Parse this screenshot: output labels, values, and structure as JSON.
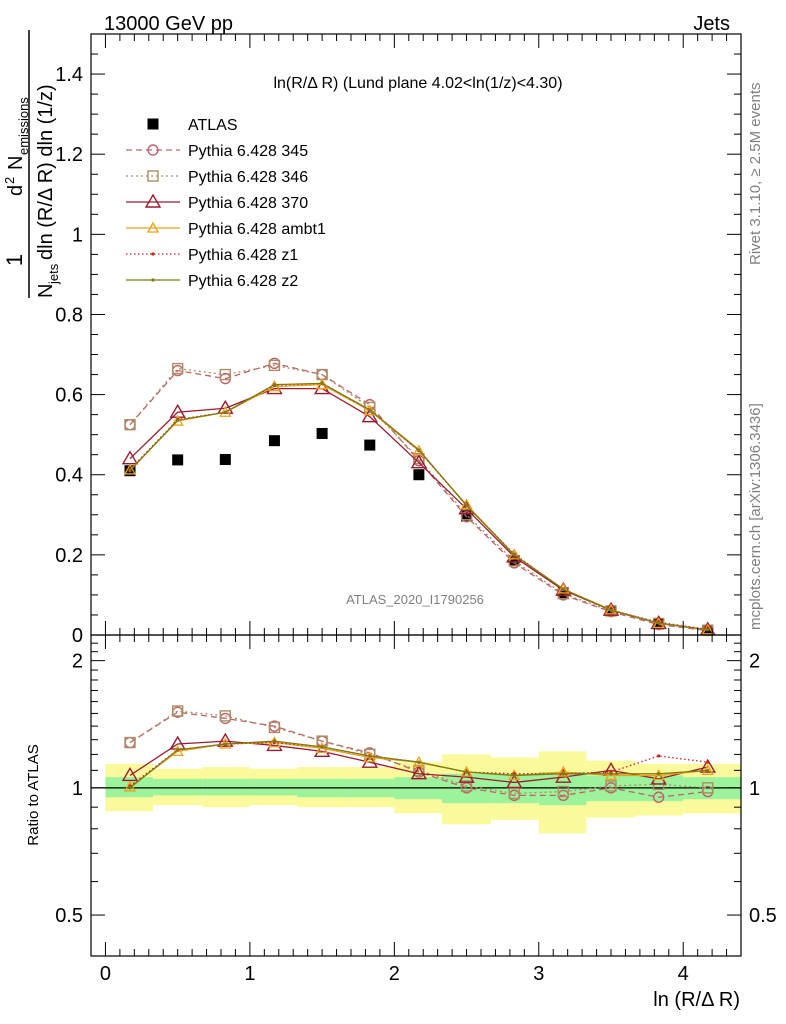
{
  "header": {
    "left": "13000 GeV pp",
    "right": "Jets"
  },
  "side": {
    "rivet": "Rivet 3.1.10, ≥ 2.5M events",
    "mcplots": "mcplots.cern.ch [arXiv:1306.3436]"
  },
  "watermark": "ATLAS_2020_I1790256",
  "colors": {
    "atlas": "#000000",
    "p345": "#c0606a",
    "p346": "#a88e62",
    "p370": "#9a1b2e",
    "ambt1": "#f0a018",
    "z1": "#d02020",
    "z2": "#7c7c14",
    "band_inner": "#9cf39c",
    "band_outer": "#fafa9c"
  },
  "chart_data": [
    {
      "type": "line",
      "title": "ln(R/Δ R) (Lund plane 4.02<ln(1/z)<4.30)",
      "ylabel": "1 / N_jets  d² N_emissions / dln (R/Δ R) dln (1/z)",
      "ylabel_parts": {
        "one": "1",
        "njets": "N",
        "jets": "jets",
        "dln1": "dln (R/Δ R) dln (1/z)",
        "d2": "d",
        "two": "2",
        "nem": "N",
        "emissions": "emissions"
      },
      "xlim": [
        -0.1,
        4.4
      ],
      "ylim": [
        0,
        1.5
      ],
      "yticks": [
        {
          "value": 0,
          "label": "0"
        },
        {
          "value": 0.2,
          "label": "0.2"
        },
        {
          "value": 0.4,
          "label": "0.4"
        },
        {
          "value": 0.6,
          "label": "0.6"
        },
        {
          "value": 0.8,
          "label": "0.8"
        },
        {
          "value": 1.0,
          "label": "1"
        },
        {
          "value": 1.2,
          "label": "1.2"
        },
        {
          "value": 1.4,
          "label": "1.4"
        }
      ],
      "x": [
        0.17,
        0.5,
        0.83,
        1.17,
        1.5,
        1.83,
        2.17,
        2.5,
        2.83,
        3.17,
        3.5,
        3.83,
        4.17
      ],
      "series": [
        {
          "key": "atlas",
          "name": "ATLAS",
          "marker": "square",
          "values": [
            0.41,
            0.437,
            0.438,
            0.485,
            0.503,
            0.474,
            0.4,
            0.297,
            0.186,
            0.105,
            0.06,
            0.028,
            0.012
          ]
        },
        {
          "key": "p345",
          "name": "Pythia 6.428 345",
          "marker": "circle",
          "dash": "6,4",
          "values": [
            0.525,
            0.66,
            0.64,
            0.678,
            0.65,
            0.575,
            0.435,
            0.295,
            0.18,
            0.1,
            0.058,
            0.026,
            0.011
          ]
        },
        {
          "key": "p346",
          "name": "Pythia 6.428 346",
          "marker": "square-open",
          "dash": "2,3",
          "values": [
            0.525,
            0.665,
            0.65,
            0.673,
            0.65,
            0.568,
            0.44,
            0.3,
            0.185,
            0.103,
            0.06,
            0.029,
            0.012
          ]
        },
        {
          "key": "p370",
          "name": "Pythia 6.428 370",
          "marker": "triangle",
          "dash": "",
          "values": [
            0.44,
            0.556,
            0.566,
            0.615,
            0.615,
            0.545,
            0.43,
            0.315,
            0.195,
            0.112,
            0.062,
            0.029,
            0.013
          ]
        },
        {
          "key": "ambt1",
          "name": "Pythia 6.428 ambt1",
          "marker": "triangle-small",
          "dash": "",
          "values": [
            0.412,
            0.534,
            0.556,
            0.62,
            0.625,
            0.56,
            0.46,
            0.325,
            0.2,
            0.115,
            0.063,
            0.029,
            0.013
          ]
        },
        {
          "key": "z1",
          "name": "Pythia 6.428 z1",
          "marker": "dot",
          "dash": "1.5,2.5",
          "values": [
            0.413,
            0.538,
            0.556,
            0.623,
            0.628,
            0.562,
            0.46,
            0.323,
            0.202,
            0.114,
            0.062,
            0.032,
            0.014
          ]
        },
        {
          "key": "z2",
          "name": "Pythia 6.428 z2",
          "marker": "dot",
          "dash": "",
          "values": [
            0.41,
            0.536,
            0.556,
            0.625,
            0.628,
            0.562,
            0.462,
            0.323,
            0.2,
            0.114,
            0.062,
            0.03,
            0.013
          ]
        }
      ]
    },
    {
      "type": "line",
      "ylabel": "Ratio to ATLAS",
      "xlabel": "ln (R/Δ R)",
      "xlim": [
        -0.1,
        4.4
      ],
      "ylim": [
        0.4,
        2.3
      ],
      "log_y": true,
      "xticks": [
        {
          "value": 0,
          "label": "0"
        },
        {
          "value": 1,
          "label": "1"
        },
        {
          "value": 2,
          "label": "2"
        },
        {
          "value": 3,
          "label": "3"
        },
        {
          "value": 4,
          "label": "4"
        }
      ],
      "yticks": [
        {
          "value": 0.5,
          "label": "0.5"
        },
        {
          "value": 1,
          "label": "1"
        },
        {
          "value": 2,
          "label": "2"
        }
      ],
      "bins": [
        [
          0,
          0.33
        ],
        [
          0.33,
          0.67
        ],
        [
          0.67,
          1
        ],
        [
          1,
          1.33
        ],
        [
          1.33,
          1.67
        ],
        [
          1.67,
          2
        ],
        [
          2,
          2.33
        ],
        [
          2.33,
          2.67
        ],
        [
          2.67,
          3
        ],
        [
          3,
          3.33
        ],
        [
          3.33,
          3.67
        ],
        [
          3.67,
          4
        ],
        [
          4,
          4.4
        ]
      ],
      "band_inner": [
        [
          0.95,
          1.06
        ],
        [
          0.96,
          1.05
        ],
        [
          0.96,
          1.05
        ],
        [
          0.96,
          1.05
        ],
        [
          0.95,
          1.05
        ],
        [
          0.95,
          1.05
        ],
        [
          0.94,
          1.06
        ],
        [
          0.92,
          1.08
        ],
        [
          0.92,
          1.08
        ],
        [
          0.91,
          1.09
        ],
        [
          0.93,
          1.07
        ],
        [
          0.93,
          1.07
        ],
        [
          0.94,
          1.06
        ]
      ],
      "band_outer": [
        [
          0.88,
          1.14
        ],
        [
          0.91,
          1.11
        ],
        [
          0.9,
          1.12
        ],
        [
          0.91,
          1.11
        ],
        [
          0.9,
          1.12
        ],
        [
          0.9,
          1.12
        ],
        [
          0.87,
          1.15
        ],
        [
          0.82,
          1.2
        ],
        [
          0.84,
          1.18
        ],
        [
          0.78,
          1.22
        ],
        [
          0.85,
          1.16
        ],
        [
          0.86,
          1.14
        ],
        [
          0.87,
          1.14
        ]
      ],
      "x": [
        0.17,
        0.5,
        0.83,
        1.17,
        1.5,
        1.83,
        2.17,
        2.5,
        2.83,
        3.17,
        3.5,
        3.83,
        4.17
      ],
      "series": [
        {
          "key": "p345",
          "name": "Pythia 6.428 345",
          "values": [
            1.28,
            1.51,
            1.46,
            1.4,
            1.29,
            1.21,
            1.09,
            1.0,
            0.96,
            0.96,
            1.0,
            0.95,
            0.98
          ]
        },
        {
          "key": "p346",
          "name": "Pythia 6.428 346",
          "values": [
            1.28,
            1.52,
            1.48,
            1.39,
            1.29,
            1.2,
            1.1,
            1.01,
            0.97,
            0.98,
            1.01,
            1.02,
            1.0
          ]
        },
        {
          "key": "p370",
          "name": "Pythia 6.428 370",
          "values": [
            1.07,
            1.27,
            1.29,
            1.26,
            1.22,
            1.15,
            1.08,
            1.06,
            1.03,
            1.06,
            1.1,
            1.05,
            1.12
          ]
        },
        {
          "key": "ambt1",
          "name": "Pythia 6.428 ambt1",
          "values": [
            1.005,
            1.22,
            1.27,
            1.28,
            1.24,
            1.18,
            1.15,
            1.09,
            1.07,
            1.09,
            1.07,
            1.07,
            1.1
          ]
        },
        {
          "key": "z1",
          "name": "Pythia 6.428 z1",
          "values": [
            1.01,
            1.23,
            1.27,
            1.28,
            1.25,
            1.19,
            1.15,
            1.09,
            1.08,
            1.08,
            1.09,
            1.19,
            1.15
          ]
        },
        {
          "key": "z2",
          "name": "Pythia 6.428 z2",
          "values": [
            1.0,
            1.23,
            1.27,
            1.29,
            1.25,
            1.19,
            1.15,
            1.09,
            1.07,
            1.08,
            1.08,
            1.08,
            1.1
          ]
        }
      ]
    }
  ]
}
